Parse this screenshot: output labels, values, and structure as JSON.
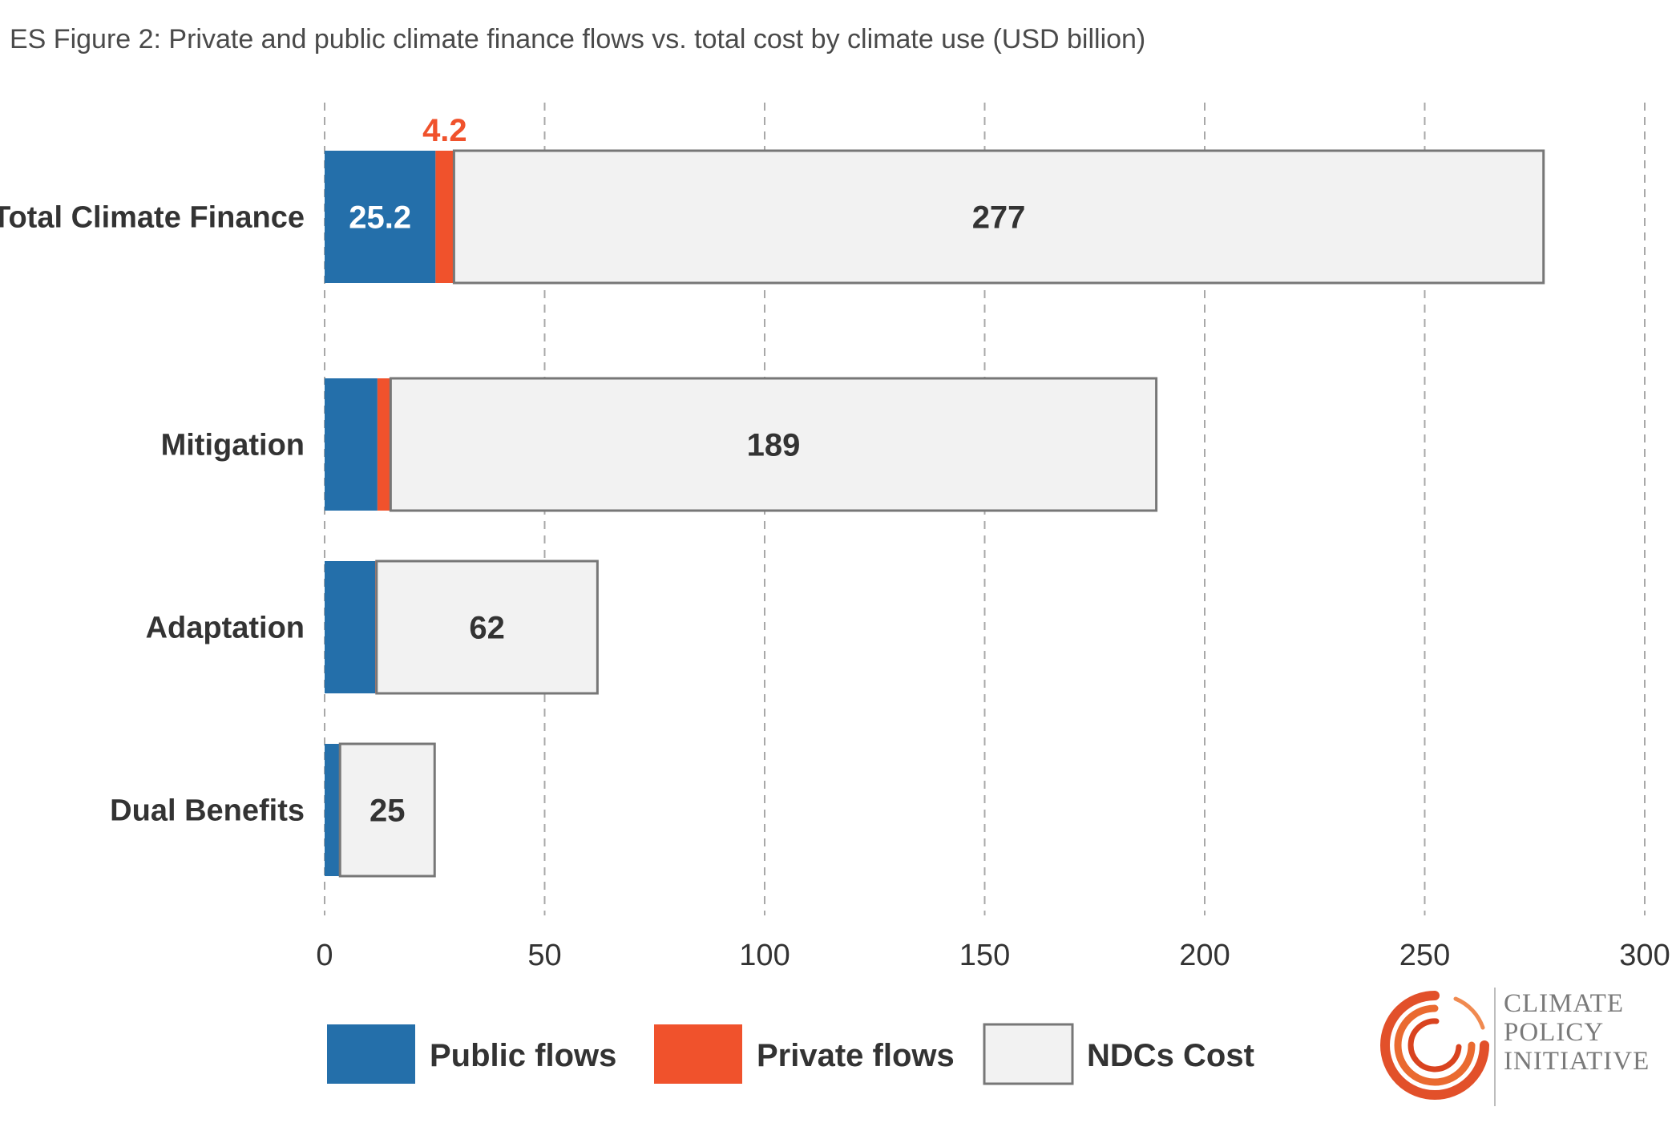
{
  "title": "ES Figure 2: Private and public climate finance flows vs. total cost by climate use (USD billion)",
  "colors": {
    "public": "#246faa",
    "private": "#f0522c",
    "ndc": "#f2f2f2",
    "ndc_border": "#777777",
    "grid": "#a8a8a8",
    "text": "#333333"
  },
  "chart_data": {
    "type": "bar",
    "orientation": "horizontal",
    "stacked": true,
    "categories": [
      "Total Climate Finance",
      "Mitigation",
      "Adaptation",
      "Dual Benefits"
    ],
    "series": [
      {
        "name": "Public flows",
        "key": "public",
        "values": [
          25.2,
          12,
          11.5,
          3.5
        ]
      },
      {
        "name": "Private flows",
        "key": "private",
        "values": [
          4.2,
          3,
          0.3,
          0
        ]
      },
      {
        "name": "NDCs Cost",
        "key": "ndc",
        "values": [
          277,
          189,
          62,
          25
        ]
      }
    ],
    "data_labels": [
      {
        "category": 0,
        "series": "public",
        "text": "25.2"
      },
      {
        "category": 0,
        "series": "private",
        "text": "4.2"
      },
      {
        "category": 0,
        "series": "ndc",
        "text": "277"
      },
      {
        "category": 1,
        "series": "ndc",
        "text": "189"
      },
      {
        "category": 2,
        "series": "ndc",
        "text": "62"
      },
      {
        "category": 3,
        "series": "ndc",
        "text": "25"
      }
    ],
    "xlim": [
      0,
      300
    ],
    "xticks": [
      0,
      50,
      100,
      150,
      200,
      250,
      300
    ],
    "xtick_labels": [
      "0",
      "50",
      "100",
      "150",
      "200",
      "250",
      "300"
    ],
    "grid": "vertical-dashed",
    "legend_position": "bottom"
  },
  "legend": [
    {
      "key": "public",
      "label": "Public flows"
    },
    {
      "key": "private",
      "label": "Private flows"
    },
    {
      "key": "ndc",
      "label": "NDCs Cost"
    }
  ],
  "logo": {
    "line1": "CLIMATE",
    "line2": "POLICY",
    "line3": "INITIATIVE"
  }
}
